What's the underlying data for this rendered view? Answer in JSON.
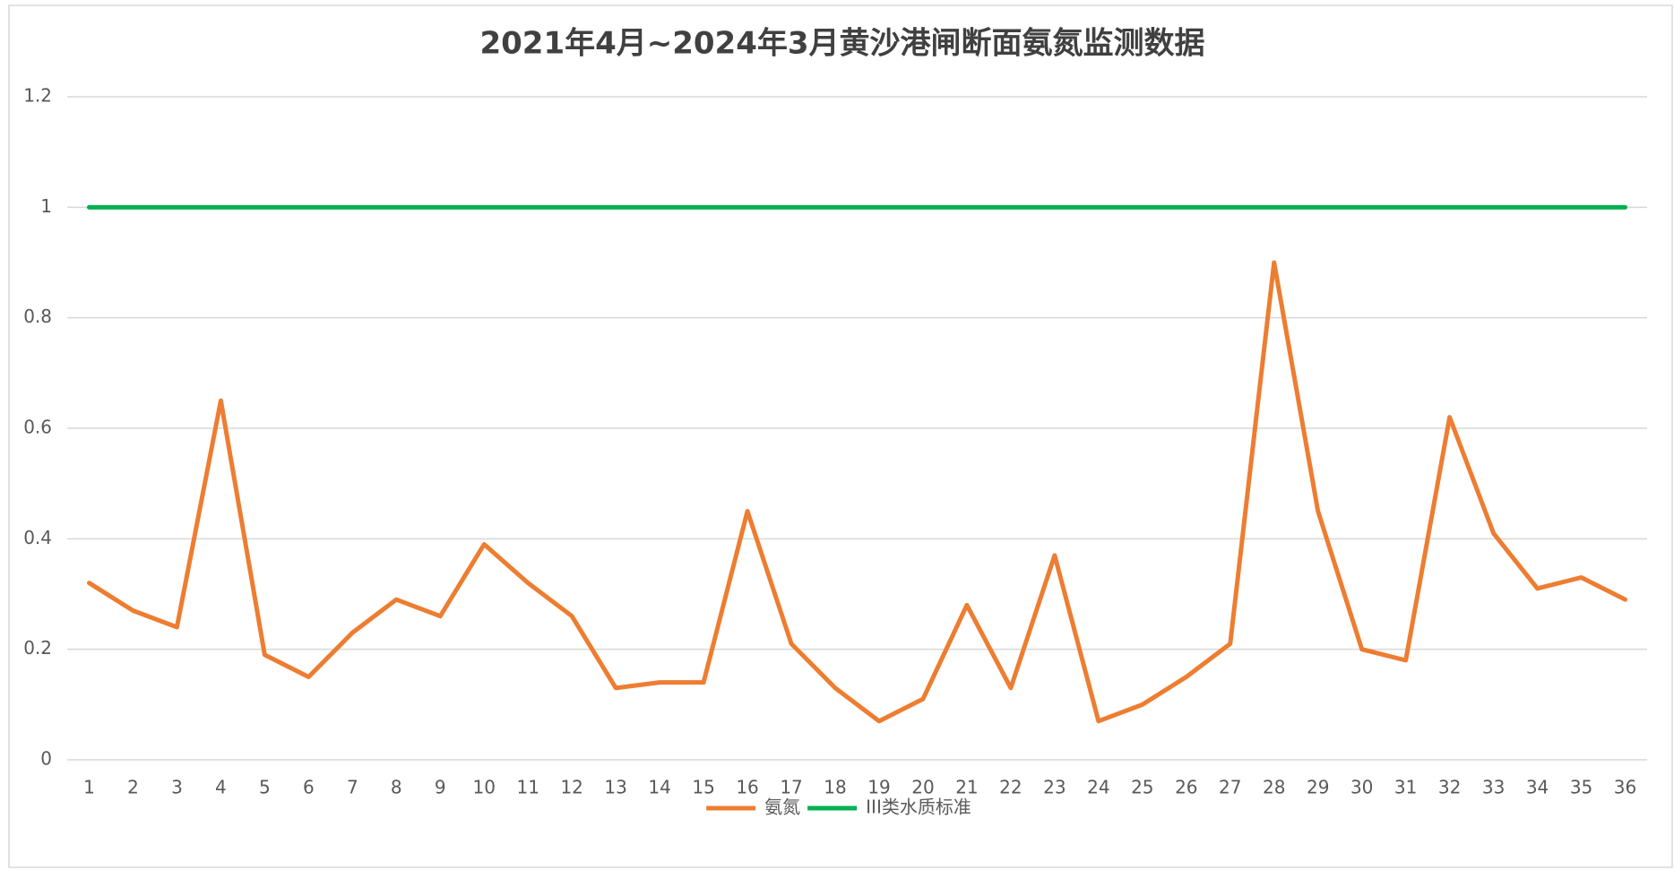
{
  "chart_data": {
    "type": "line",
    "title": "2021年4月~2024年3月黄沙港闸断面氨氮监测数据",
    "categories": [
      "1",
      "2",
      "3",
      "4",
      "5",
      "6",
      "7",
      "8",
      "9",
      "10",
      "11",
      "12",
      "13",
      "14",
      "15",
      "16",
      "17",
      "18",
      "19",
      "20",
      "21",
      "22",
      "23",
      "24",
      "25",
      "26",
      "27",
      "28",
      "29",
      "30",
      "31",
      "32",
      "33",
      "34",
      "35",
      "36"
    ],
    "series": [
      {
        "name": "氨氮",
        "color": "#ed7d31",
        "values": [
          0.32,
          0.27,
          0.24,
          0.65,
          0.19,
          0.15,
          0.23,
          0.29,
          0.26,
          0.39,
          0.32,
          0.26,
          0.13,
          0.14,
          0.14,
          0.45,
          0.21,
          0.13,
          0.07,
          0.11,
          0.28,
          0.13,
          0.37,
          0.07,
          0.1,
          0.15,
          0.21,
          0.9,
          0.45,
          0.2,
          0.18,
          0.62,
          0.41,
          0.31,
          0.33,
          0.29
        ]
      },
      {
        "name": "III类水质标准",
        "color": "#00b050",
        "values": [
          1,
          1,
          1,
          1,
          1,
          1,
          1,
          1,
          1,
          1,
          1,
          1,
          1,
          1,
          1,
          1,
          1,
          1,
          1,
          1,
          1,
          1,
          1,
          1,
          1,
          1,
          1,
          1,
          1,
          1,
          1,
          1,
          1,
          1,
          1,
          1
        ]
      }
    ],
    "ylim": [
      0,
      1.2
    ],
    "yticks": [
      0,
      0.2,
      0.4,
      0.6,
      0.8,
      1,
      1.2
    ],
    "grid": true,
    "legend": "bottom"
  }
}
